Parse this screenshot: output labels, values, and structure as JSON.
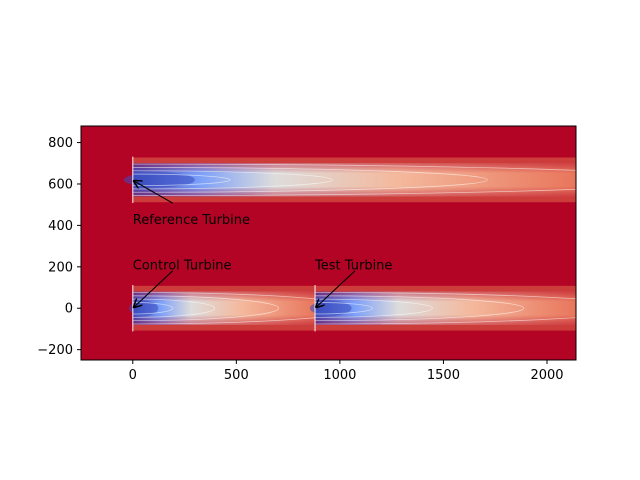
{
  "chart_data": {
    "type": "heatmap",
    "title": "",
    "xlabel": "",
    "ylabel": "",
    "xlim": [
      -250,
      2140
    ],
    "ylim": [
      -250,
      880
    ],
    "x_ticks": [
      0,
      500,
      1000,
      1500,
      2000
    ],
    "x_tick_labels": [
      "0",
      "500",
      "1000",
      "1500",
      "2000"
    ],
    "y_ticks": [
      -200,
      0,
      200,
      400,
      600,
      800
    ],
    "y_tick_labels": [
      "−200",
      "0",
      "200",
      "400",
      "600",
      "800"
    ],
    "colormap": "coolwarm",
    "colors": {
      "freestream": "#b40426",
      "wake_core": "#3b4cc0",
      "wake_mid": "#dddcdc",
      "wake_edge": "#e8765c",
      "contour_line": "#ffffff"
    },
    "turbines": [
      {
        "name": "Reference Turbine",
        "x": 0,
        "y": 620
      },
      {
        "name": "Control Turbine",
        "x": 0,
        "y": 0
      },
      {
        "name": "Test Turbine",
        "x": 880,
        "y": 0
      }
    ],
    "annotations": [
      {
        "text": "Reference Turbine",
        "point": [
          0,
          620
        ],
        "text_at": [
          0,
          430
        ]
      },
      {
        "text": "Control Turbine",
        "point": [
          0,
          0
        ],
        "text_at": [
          0,
          210
        ]
      },
      {
        "text": "Test Turbine",
        "point": [
          880,
          0
        ],
        "text_at": [
          880,
          210
        ]
      }
    ]
  }
}
